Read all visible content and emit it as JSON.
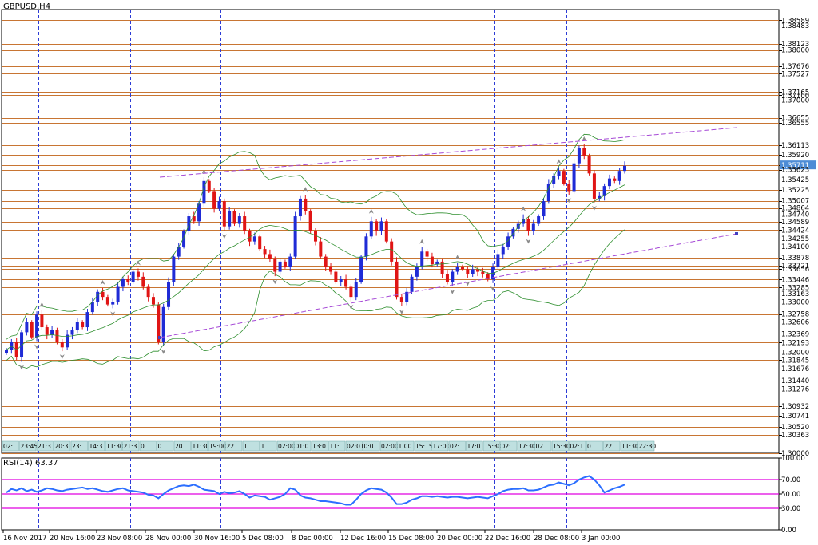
{
  "window": {
    "symbol_title": "GBPUSD,H4"
  },
  "rsi": {
    "label": "RSI(14) 63.37",
    "levels": [
      "100.00",
      "70.00",
      "50.00",
      "30.00",
      "0.00"
    ]
  },
  "colors": {
    "background": "#ffffff",
    "bull_candle": "#1f2bd6",
    "bear_candle": "#e01515",
    "price_level_line": "#c87533",
    "period_separator": "#2c3bd6",
    "trend_line": "#a64ad6",
    "bands": "#2f8f2f",
    "rsi_line": "#2c6fff",
    "rsi_levels": "#e000e0",
    "current_price_marker": "#4d8cd6",
    "session_box": "#bfe0e0"
  },
  "price_labels": [
    "1.38589",
    "1.38483",
    "1.38123",
    "1.38000",
    "1.37676",
    "1.37527",
    "1.37165",
    "1.37100",
    "1.37000",
    "1.36655",
    "1.36555",
    "1.36113",
    "1.35920",
    "1.35711",
    "1.35623",
    "1.35425",
    "1.35225",
    "1.35007",
    "1.34864",
    "1.34740",
    "1.34589",
    "1.34424",
    "1.34255",
    "1.34100",
    "1.33878",
    "1.33721",
    "1.33656",
    "1.33446",
    "1.33285",
    "1.33163",
    "1.33000",
    "1.32758",
    "1.32606",
    "1.32369",
    "1.32193",
    "1.32000",
    "1.31845",
    "1.31676",
    "1.31440",
    "1.31276",
    "1.30932",
    "1.30741",
    "1.30520",
    "1.30363",
    "1.30000"
  ],
  "current_price": "1.35711",
  "time_labels": [
    "16 Nov 2017",
    "20 Nov 16:00",
    "23 Nov 08:00",
    "28 Nov 00:00",
    "30 Nov 16:00",
    "5 Dec 08:00",
    "8 Dec 00:00",
    "12 Dec 16:00",
    "15 Dec 08:00",
    "20 Dec 00:00",
    "22 Dec 16:00",
    "28 Dec 08:00",
    "3 Jan 00:00"
  ],
  "session_labels": [
    "02:",
    "23:45",
    "21:3",
    "20:3",
    "23:",
    "14:3",
    "11:30",
    "21:3",
    "0",
    "0",
    "20",
    "11:30",
    "19:00",
    "22",
    "1",
    "1",
    "02:00",
    "01:0",
    "13:0",
    "11:",
    "02:01",
    "0:0",
    "02:00",
    "1:00",
    "15:15",
    "17:00",
    "02:",
    "17:0",
    "15:30",
    "02:",
    "17:30",
    "02",
    "15:30",
    "02:1",
    "0",
    "22",
    "11:30",
    "22:30"
  ],
  "chart_data": {
    "type": "candlestick",
    "symbol": "GBPUSD",
    "timeframe": "H4",
    "ylim": [
      1.3,
      1.388
    ],
    "x_range": [
      "16 Nov 2017",
      "4 Jan 2018"
    ],
    "grid": true,
    "series": [
      {
        "name": "GBPUSD,H4",
        "close": [
          1.3205,
          1.322,
          1.319,
          1.324,
          1.326,
          1.323,
          1.3275,
          1.325,
          1.3235,
          1.3245,
          1.322,
          1.321,
          1.3235,
          1.3245,
          1.326,
          1.325,
          1.328,
          1.33,
          1.332,
          1.331,
          1.3295,
          1.33,
          1.333,
          1.3345,
          1.334,
          1.336,
          1.335,
          1.333,
          1.331,
          1.3295,
          1.322,
          1.329,
          1.334,
          1.339,
          1.341,
          1.344,
          1.347,
          1.346,
          1.3495,
          1.354,
          1.352,
          1.3485,
          1.35,
          1.345,
          1.348,
          1.3455,
          1.347,
          1.344,
          1.342,
          1.343,
          1.3405,
          1.3395,
          1.3385,
          1.336,
          1.338,
          1.337,
          1.339,
          1.347,
          1.3505,
          1.348,
          1.344,
          1.342,
          1.339,
          1.337,
          1.336,
          1.334,
          1.3345,
          1.333,
          1.331,
          1.334,
          1.339,
          1.343,
          1.346,
          1.344,
          1.346,
          1.342,
          1.338,
          1.331,
          1.33,
          1.332,
          1.335,
          1.337,
          1.34,
          1.339,
          1.3375,
          1.338,
          1.3355,
          1.334,
          1.336,
          1.337,
          1.3365,
          1.3355,
          1.3365,
          1.336,
          1.3355,
          1.3345,
          1.337,
          1.3395,
          1.341,
          1.343,
          1.3445,
          1.3455,
          1.3465,
          1.344,
          1.3455,
          1.347,
          1.35,
          1.3535,
          1.355,
          1.356,
          1.3535,
          1.352,
          1.3575,
          1.3605,
          1.359,
          1.3555,
          1.3505,
          1.351,
          1.353,
          1.3545,
          1.354,
          1.356,
          1.357
        ]
      }
    ],
    "indicators": [
      "Bollinger Bands",
      "Support/Resistance levels",
      "Fractals",
      "Trend channel"
    ],
    "rsi": {
      "period": 14,
      "last": 63.37,
      "levels": [
        30,
        50,
        70
      ],
      "ylim": [
        0,
        100
      ],
      "values": [
        52,
        57,
        55,
        58,
        54,
        56,
        53,
        55,
        58,
        57,
        55,
        54,
        56,
        57,
        58,
        59,
        57,
        58,
        56,
        54,
        53,
        55,
        57,
        58,
        55,
        54,
        53,
        52,
        49,
        48,
        44,
        50,
        55,
        58,
        61,
        62,
        61,
        63,
        60,
        56,
        55,
        54,
        50,
        53,
        51,
        52,
        54,
        50,
        45,
        48,
        47,
        46,
        42,
        44,
        46,
        50,
        58,
        56,
        48,
        45,
        44,
        42,
        40,
        40,
        39,
        38,
        37,
        35,
        35,
        42,
        50,
        55,
        58,
        57,
        56,
        52,
        45,
        36,
        36,
        38,
        42,
        44,
        47,
        47,
        46,
        47,
        46,
        45,
        46,
        46,
        45,
        44,
        45,
        46,
        45,
        44,
        47,
        50,
        54,
        56,
        57,
        57,
        58,
        55,
        55,
        56,
        59,
        62,
        63,
        66,
        64,
        62,
        65,
        70,
        73,
        75,
        70,
        62,
        52,
        55,
        58,
        60,
        63
      ]
    }
  }
}
